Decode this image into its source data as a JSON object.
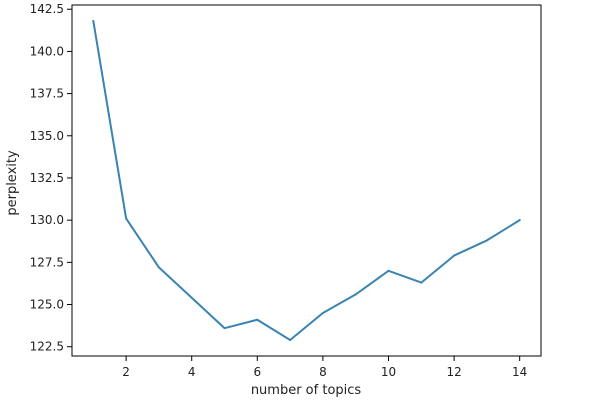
{
  "chart_data": {
    "type": "line",
    "title": "",
    "xlabel": "number of topics",
    "ylabel": "perplexity",
    "xlim": [
      0.35,
      14.65
    ],
    "ylim": [
      121.95,
      142.75
    ],
    "xticks": [
      2,
      4,
      6,
      8,
      10,
      12,
      14
    ],
    "yticks": [
      122.5,
      125.0,
      127.5,
      130.0,
      132.5,
      135.0,
      137.5,
      140.0,
      142.5
    ],
    "ytick_labels": [
      "122.5",
      "125.0",
      "127.5",
      "130.0",
      "132.5",
      "135.0",
      "137.5",
      "140.0",
      "142.5"
    ],
    "grid": false,
    "legend": "none",
    "series": [
      {
        "color": "#3a84b1",
        "x": [
          1,
          2,
          3,
          4,
          5,
          6,
          7,
          8,
          9,
          10,
          11,
          12,
          13,
          14
        ],
        "y": [
          141.8,
          130.1,
          127.2,
          125.4,
          123.6,
          124.1,
          122.9,
          124.5,
          125.6,
          127.0,
          126.3,
          127.9,
          128.8,
          130.0
        ]
      }
    ]
  }
}
